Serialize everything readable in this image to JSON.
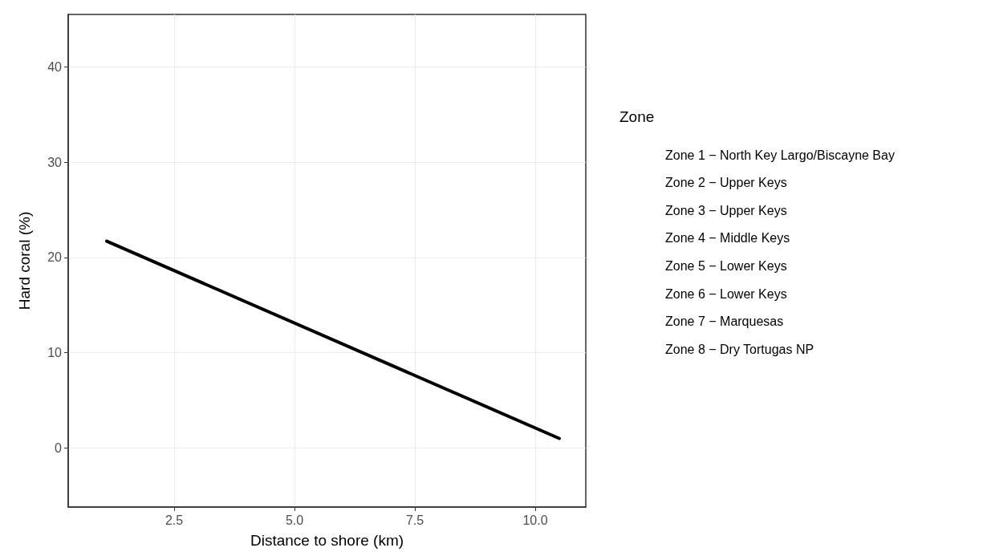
{
  "chart_data": {
    "type": "line",
    "xlabel": "Distance to shore (km)",
    "ylabel": "Hard coral (%)",
    "legend_title": "Zone",
    "annotations": [
      "Zone 1 − North Key Largo/Biscayne Bay",
      "Zone 2 − Upper Keys",
      "Zone 3 − Upper Keys",
      "Zone 4 − Middle Keys",
      "Zone 5 − Lower Keys",
      "Zone 6 − Lower Keys",
      "Zone 7 − Marquesas",
      "Zone 8 − Dry Tortugas NP"
    ],
    "series": [
      {
        "color": "#000000",
        "x": [
          1.1,
          10.5
        ],
        "values": [
          21.7,
          1.0
        ]
      }
    ],
    "xlim": [
      0.3,
      11.05
    ],
    "xticks": [
      {
        "value": 2.5,
        "label": "2.5"
      },
      {
        "value": 5,
        "label": "5.0"
      },
      {
        "value": 7.5,
        "label": "7.5"
      },
      {
        "value": 10,
        "label": "10.0"
      }
    ],
    "ylim": [
      -6.2,
      45.5
    ],
    "yticks": [
      0,
      10,
      20,
      30,
      40
    ],
    "grid": true,
    "marker": "none",
    "line_style": "solid"
  }
}
